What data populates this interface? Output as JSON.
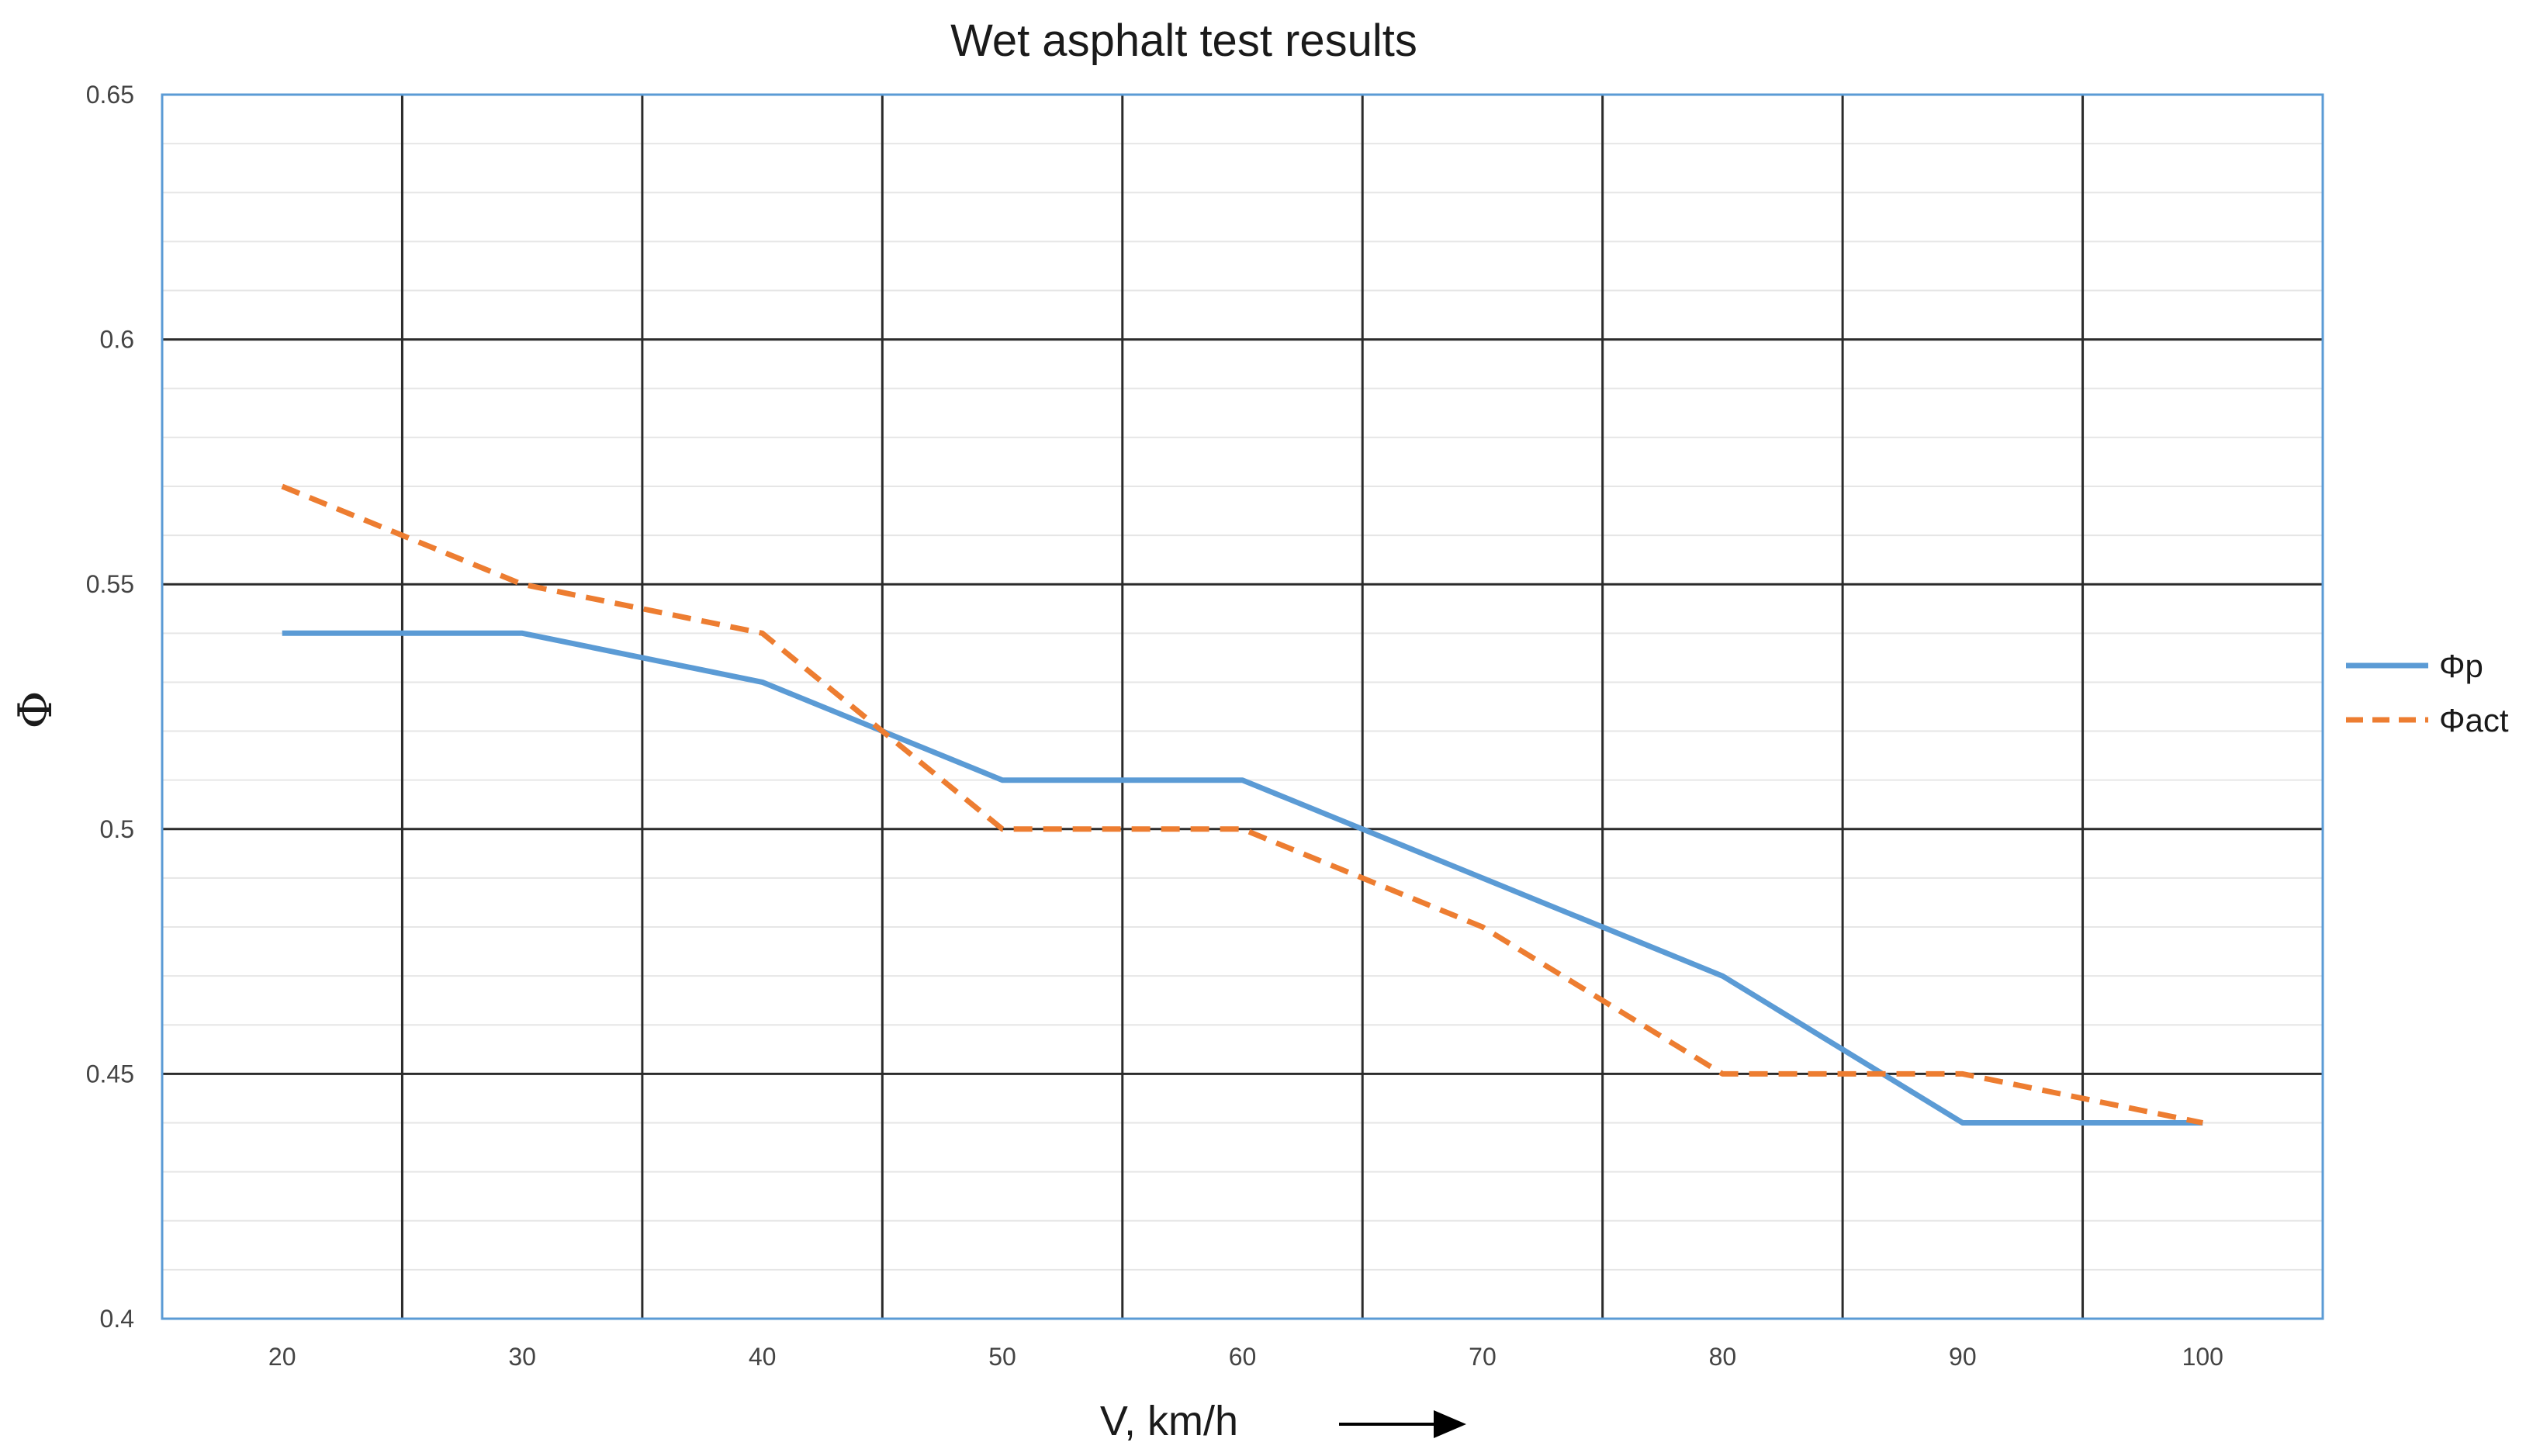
{
  "chart_data": {
    "type": "line",
    "title": "Wet asphalt test results",
    "xlabel": "V, km/h",
    "ylabel": "Φ",
    "x": [
      20,
      30,
      40,
      50,
      60,
      70,
      80,
      90,
      100
    ],
    "x_tick_labels": [
      "20",
      "30",
      "40",
      "50",
      "60",
      "70",
      "80",
      "90",
      "100"
    ],
    "y_tick_labels": [
      "0.4",
      "0.45",
      "0.5",
      "0.55",
      "0.6",
      "0.65"
    ],
    "ylim": [
      0.4,
      0.65
    ],
    "grid": true,
    "legend_position": "right",
    "series": [
      {
        "name": "Φp",
        "values": [
          0.54,
          0.54,
          0.53,
          0.51,
          0.51,
          0.49,
          0.47,
          0.44,
          0.44
        ],
        "color": "#5b9bd5",
        "style": "solid"
      },
      {
        "name": "Φact",
        "values": [
          0.57,
          0.55,
          0.54,
          0.5,
          0.5,
          0.48,
          0.45,
          0.45,
          0.44
        ],
        "color": "#ed7d31",
        "style": "dashed"
      }
    ]
  }
}
